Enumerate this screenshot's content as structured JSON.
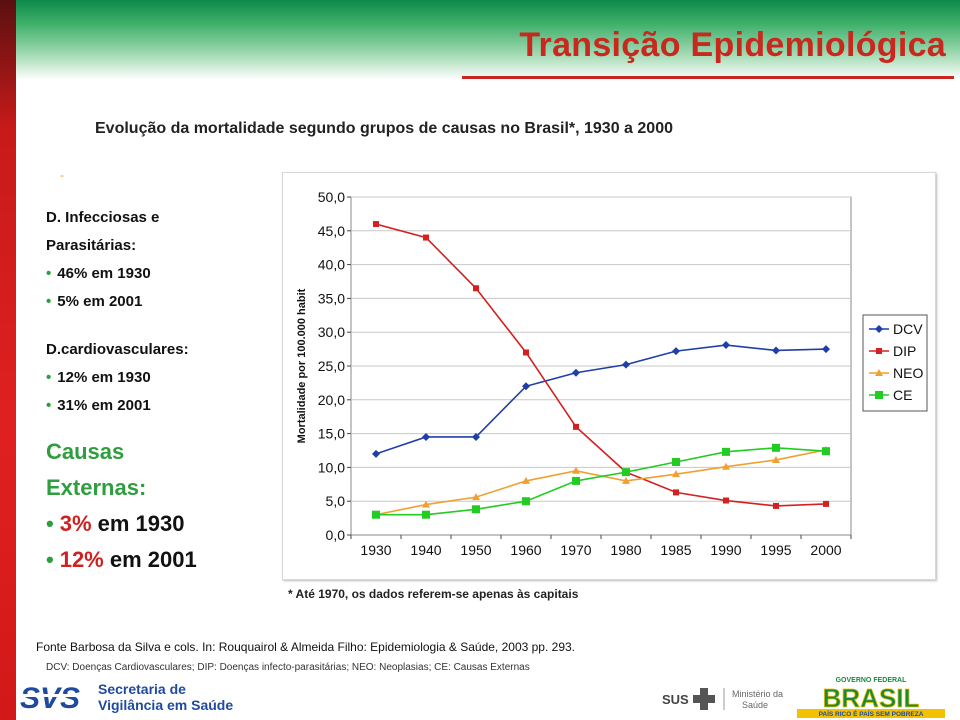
{
  "page": {
    "title": "Transição Epidemiológica",
    "subtitle": "Evolução da mortalidade segundo grupos de causas no Brasil*,  1930 a 2000",
    "dot": "-"
  },
  "stats": {
    "dip_heading_1": "D. Infecciosas e",
    "dip_heading_2": "Parasitárias:",
    "dip_1930": "46% em 1930",
    "dip_2001": "5% em 2001",
    "dcv_heading": "D.cardiovasculares:",
    "dcv_1930": "12% em 1930",
    "dcv_2001": "31% em 2001",
    "ce_heading_1": "Causas",
    "ce_heading_2": "Externas:",
    "ce_1930_pct": "3%",
    "ce_1930_rest": " em 1930",
    "ce_2001_pct": "12%",
    "ce_2001_rest": " em 2001",
    "bullet": "•"
  },
  "footnote": "* Até 1970, os dados referem-se apenas às capitais",
  "source": "Fonte Barbosa da Silva e cols. In: Rouquairol & Almeida Filho: Epidemiologia & Saúde, 2003 pp. 293.",
  "abbreviations": "DCV: Doenças Cardiovasculares; DIP: Doenças infecto-parasitárias; NEO: Neoplasias; CE: Causas Externas",
  "logos": {
    "svs_mark": "SVS",
    "svs_line1": "Secretaria de",
    "svs_line2": "Vigilância em Saúde",
    "sus": "SUS",
    "ministerio_line1": "Ministério da",
    "ministerio_line2": "Saúde",
    "governo": "GOVERNO FEDERAL",
    "brasil": "BRASIL",
    "brasil_tagline": "PAÍS RICO É PAÍS SEM POBREZA"
  },
  "colors": {
    "title_red": "#c8281e",
    "accent_green": "#2e9e3e",
    "dcv": "#1f3ea8",
    "dip": "#d42020",
    "neo": "#f0a030",
    "ce": "#22cc22"
  },
  "chart_data": {
    "type": "line",
    "title": "",
    "xlabel": "",
    "ylabel": "Mortalidade por 100.000 habit",
    "categories": [
      "1930",
      "1940",
      "1950",
      "1960",
      "1970",
      "1980",
      "1985",
      "1990",
      "1995",
      "2000"
    ],
    "ylim": [
      0,
      50
    ],
    "ytick_step": 5,
    "ytick_labels": [
      "0,0",
      "5,0",
      "10,0",
      "15,0",
      "20,0",
      "25,0",
      "30,0",
      "35,0",
      "40,0",
      "45,0",
      "50,0"
    ],
    "grid": true,
    "legend": "right",
    "series": [
      {
        "name": "DCV",
        "color": "#1f3ea8",
        "marker": "diamond",
        "values": [
          12.0,
          14.5,
          14.5,
          22.0,
          24.0,
          25.2,
          27.2,
          28.1,
          27.3,
          27.5
        ]
      },
      {
        "name": "DIP",
        "color": "#d42020",
        "marker": "square",
        "values": [
          46.0,
          44.0,
          36.5,
          27.0,
          16.0,
          9.3,
          6.3,
          5.1,
          4.3,
          4.6
        ]
      },
      {
        "name": "NEO",
        "color": "#f0a030",
        "marker": "triangle",
        "values": [
          3.0,
          4.5,
          5.6,
          8.0,
          9.5,
          8.0,
          9.0,
          10.1,
          11.1,
          12.6
        ]
      },
      {
        "name": "CE",
        "color": "#22cc22",
        "marker": "square",
        "values": [
          3.0,
          3.0,
          3.8,
          5.0,
          8.0,
          9.3,
          10.8,
          12.3,
          12.9,
          12.4
        ]
      }
    ]
  }
}
